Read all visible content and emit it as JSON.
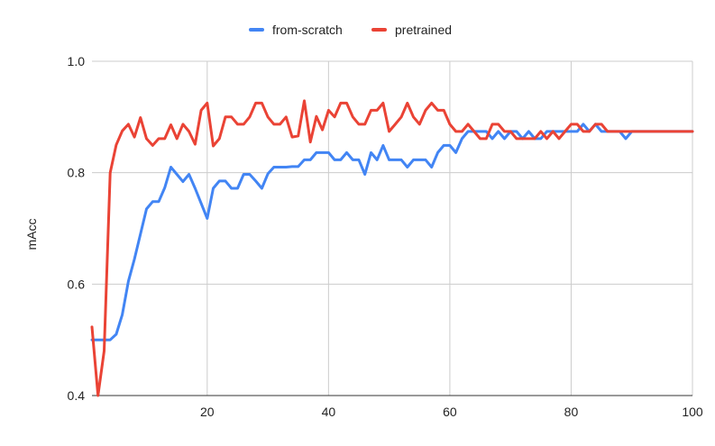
{
  "chart_data": {
    "type": "line",
    "title": "",
    "xlabel": "",
    "ylabel": "mAcc",
    "xlim": [
      1,
      100
    ],
    "ylim": [
      0.4,
      1.0
    ],
    "x_ticks": [
      20,
      40,
      60,
      80,
      100
    ],
    "y_ticks": [
      0.4,
      0.6,
      0.8,
      1.0
    ],
    "x_tick_labels": [
      "20",
      "40",
      "60",
      "80",
      "100"
    ],
    "y_tick_labels": [
      "0.4",
      "0.6",
      "0.8",
      "1.0"
    ],
    "grid": true,
    "legend_position": "top",
    "x": [
      1,
      2,
      3,
      4,
      5,
      6,
      7,
      8,
      9,
      10,
      11,
      12,
      13,
      14,
      15,
      16,
      17,
      18,
      19,
      20,
      21,
      22,
      23,
      24,
      25,
      26,
      27,
      28,
      29,
      30,
      31,
      32,
      33,
      34,
      35,
      36,
      37,
      38,
      39,
      40,
      41,
      42,
      43,
      44,
      45,
      46,
      47,
      48,
      49,
      50,
      51,
      52,
      53,
      54,
      55,
      56,
      57,
      58,
      59,
      60,
      61,
      62,
      63,
      64,
      65,
      66,
      67,
      68,
      69,
      70,
      71,
      72,
      73,
      74,
      75,
      76,
      77,
      78,
      79,
      80,
      81,
      82,
      83,
      84,
      85,
      86,
      87,
      88,
      89,
      90,
      91,
      92,
      93,
      94,
      95,
      96,
      97,
      98,
      99,
      100
    ],
    "series": [
      {
        "name": "from-scratch",
        "color": "#4285f4",
        "values": [
          0.5,
          0.5,
          0.5,
          0.5,
          0.51,
          0.545,
          0.605,
          0.645,
          0.69,
          0.735,
          0.748,
          0.748,
          0.773,
          0.81,
          0.797,
          0.784,
          0.797,
          0.772,
          0.745,
          0.718,
          0.772,
          0.785,
          0.785,
          0.772,
          0.772,
          0.797,
          0.797,
          0.785,
          0.772,
          0.798,
          0.81,
          0.81,
          0.81,
          0.811,
          0.811,
          0.823,
          0.823,
          0.836,
          0.836,
          0.836,
          0.823,
          0.823,
          0.836,
          0.823,
          0.823,
          0.797,
          0.836,
          0.823,
          0.849,
          0.823,
          0.823,
          0.823,
          0.81,
          0.823,
          0.823,
          0.823,
          0.81,
          0.836,
          0.849,
          0.849,
          0.836,
          0.861,
          0.874,
          0.874,
          0.874,
          0.874,
          0.861,
          0.874,
          0.861,
          0.874,
          0.874,
          0.861,
          0.874,
          0.861,
          0.861,
          0.874,
          0.874,
          0.874,
          0.874,
          0.874,
          0.874,
          0.887,
          0.874,
          0.887,
          0.874,
          0.874,
          0.874,
          0.874,
          0.861,
          0.874,
          0.874,
          0.874,
          0.874,
          0.874,
          0.874,
          0.874,
          0.874,
          0.874,
          0.874,
          0.874
        ]
      },
      {
        "name": "pretrained",
        "color": "#ea4335",
        "values": [
          0.523,
          0.4,
          0.48,
          0.8,
          0.85,
          0.875,
          0.887,
          0.864,
          0.899,
          0.861,
          0.849,
          0.861,
          0.861,
          0.886,
          0.861,
          0.887,
          0.874,
          0.851,
          0.912,
          0.925,
          0.848,
          0.861,
          0.9,
          0.9,
          0.887,
          0.887,
          0.9,
          0.925,
          0.925,
          0.9,
          0.887,
          0.887,
          0.9,
          0.864,
          0.866,
          0.929,
          0.855,
          0.901,
          0.877,
          0.912,
          0.9,
          0.925,
          0.925,
          0.9,
          0.887,
          0.887,
          0.912,
          0.912,
          0.925,
          0.874,
          0.887,
          0.9,
          0.925,
          0.9,
          0.887,
          0.912,
          0.925,
          0.912,
          0.912,
          0.887,
          0.874,
          0.874,
          0.887,
          0.874,
          0.861,
          0.861,
          0.887,
          0.887,
          0.874,
          0.874,
          0.861,
          0.861,
          0.861,
          0.861,
          0.874,
          0.861,
          0.874,
          0.861,
          0.874,
          0.887,
          0.887,
          0.874,
          0.874,
          0.887,
          0.887,
          0.874,
          0.874,
          0.874,
          0.874,
          0.874,
          0.874,
          0.874,
          0.874,
          0.874,
          0.874,
          0.874,
          0.874,
          0.874,
          0.874,
          0.874
        ]
      }
    ]
  }
}
